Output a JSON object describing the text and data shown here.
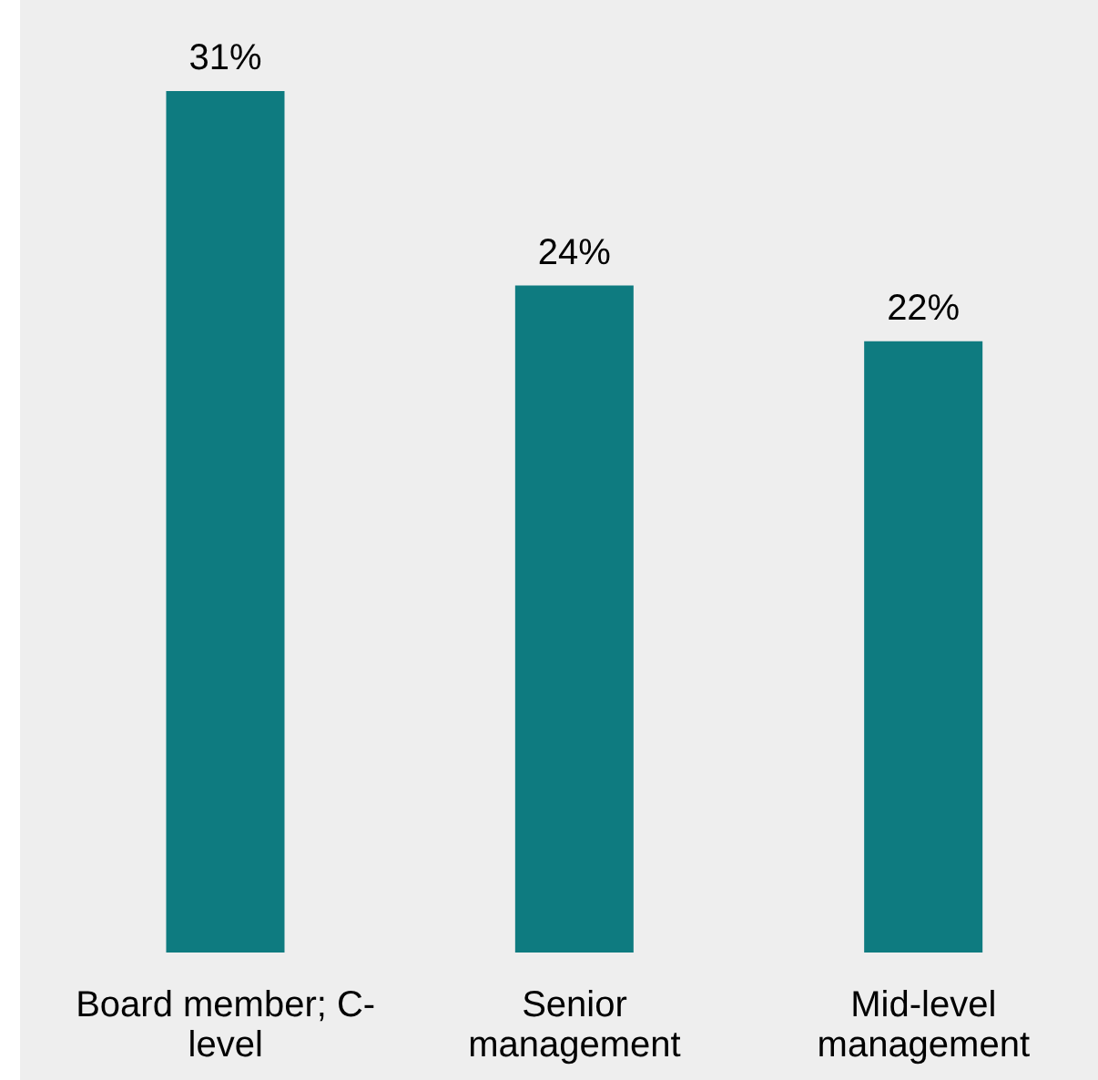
{
  "chart_data": {
    "type": "bar",
    "categories": [
      "Board member; C-level",
      "Senior management",
      "Mid-level management"
    ],
    "values": [
      31,
      24,
      22
    ],
    "value_labels": [
      "31%",
      "24%",
      "22%"
    ],
    "color": "#0e7b80",
    "grid": false,
    "legend": false
  }
}
